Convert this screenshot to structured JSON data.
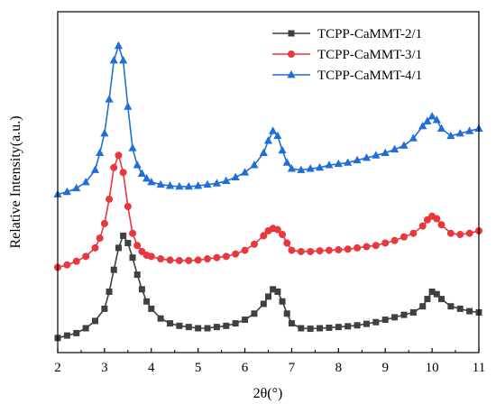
{
  "chart_data": {
    "type": "line",
    "xlabel": "2θ(°)",
    "ylabel": "Relative Intensity(a.u.)",
    "xlim": [
      2,
      11
    ],
    "ylim": [
      0,
      14
    ],
    "x_ticks": [
      "2",
      "3",
      "4",
      "5",
      "6",
      "7",
      "8",
      "9",
      "10",
      "11"
    ],
    "y_ticks_labeled": false,
    "grid": false,
    "legend_position": "top-right",
    "series": [
      {
        "name": "TCPP-CaMMT-2/1",
        "color": "#404040",
        "marker": "square",
        "x": [
          2.0,
          2.2,
          2.4,
          2.6,
          2.8,
          3.0,
          3.1,
          3.2,
          3.3,
          3.4,
          3.5,
          3.6,
          3.7,
          3.8,
          3.9,
          4.0,
          4.2,
          4.4,
          4.6,
          4.8,
          5.0,
          5.2,
          5.4,
          5.6,
          5.8,
          6.0,
          6.2,
          6.4,
          6.5,
          6.6,
          6.7,
          6.8,
          6.9,
          7.0,
          7.2,
          7.4,
          7.6,
          7.8,
          8.0,
          8.2,
          8.4,
          8.6,
          8.8,
          9.0,
          9.2,
          9.4,
          9.6,
          9.8,
          9.9,
          10.0,
          10.1,
          10.2,
          10.4,
          10.6,
          10.8,
          11.0
        ],
        "y": [
          0.6,
          0.7,
          0.8,
          1.0,
          1.3,
          1.8,
          2.5,
          3.4,
          4.3,
          4.8,
          4.5,
          3.9,
          3.2,
          2.6,
          2.1,
          1.8,
          1.4,
          1.2,
          1.1,
          1.05,
          1.0,
          1.0,
          1.05,
          1.1,
          1.2,
          1.35,
          1.6,
          2.0,
          2.3,
          2.6,
          2.5,
          2.1,
          1.6,
          1.2,
          1.0,
          0.98,
          1.0,
          1.02,
          1.05,
          1.08,
          1.12,
          1.18,
          1.25,
          1.35,
          1.45,
          1.55,
          1.65,
          1.9,
          2.2,
          2.5,
          2.4,
          2.2,
          1.9,
          1.8,
          1.7,
          1.65
        ]
      },
      {
        "name": "TCPP-CaMMT-3/1",
        "color": "#e8383d",
        "marker": "circle",
        "x": [
          2.0,
          2.2,
          2.4,
          2.6,
          2.8,
          2.9,
          3.0,
          3.1,
          3.2,
          3.3,
          3.4,
          3.5,
          3.6,
          3.7,
          3.8,
          3.9,
          4.0,
          4.2,
          4.4,
          4.6,
          4.8,
          5.0,
          5.2,
          5.4,
          5.6,
          5.8,
          6.0,
          6.2,
          6.4,
          6.5,
          6.6,
          6.7,
          6.8,
          6.9,
          7.0,
          7.2,
          7.4,
          7.6,
          7.8,
          8.0,
          8.2,
          8.4,
          8.6,
          8.8,
          9.0,
          9.2,
          9.4,
          9.6,
          9.8,
          9.9,
          10.0,
          10.1,
          10.2,
          10.4,
          10.6,
          10.8,
          11.0
        ],
        "y": [
          3.5,
          3.6,
          3.75,
          3.95,
          4.3,
          4.7,
          5.3,
          6.3,
          7.6,
          8.1,
          7.4,
          6.0,
          4.9,
          4.4,
          4.15,
          4.0,
          3.95,
          3.85,
          3.8,
          3.78,
          3.78,
          3.8,
          3.85,
          3.9,
          3.95,
          4.05,
          4.2,
          4.45,
          4.8,
          5.0,
          5.1,
          5.05,
          4.85,
          4.5,
          4.2,
          4.15,
          4.15,
          4.18,
          4.2,
          4.22,
          4.25,
          4.3,
          4.35,
          4.4,
          4.5,
          4.6,
          4.75,
          4.9,
          5.2,
          5.45,
          5.6,
          5.5,
          5.25,
          4.9,
          4.85,
          4.9,
          5.0
        ]
      },
      {
        "name": "TCPP-CaMMT-4/1",
        "color": "#1f6fd6",
        "marker": "triangle",
        "x": [
          2.0,
          2.2,
          2.4,
          2.6,
          2.8,
          2.9,
          3.0,
          3.1,
          3.2,
          3.3,
          3.4,
          3.5,
          3.6,
          3.7,
          3.8,
          3.9,
          4.0,
          4.2,
          4.4,
          4.6,
          4.8,
          5.0,
          5.2,
          5.4,
          5.6,
          5.8,
          6.0,
          6.2,
          6.4,
          6.5,
          6.6,
          6.7,
          6.8,
          6.9,
          7.0,
          7.2,
          7.4,
          7.6,
          7.8,
          8.0,
          8.2,
          8.4,
          8.6,
          8.8,
          9.0,
          9.2,
          9.4,
          9.6,
          9.8,
          9.9,
          10.0,
          10.1,
          10.2,
          10.4,
          10.6,
          10.8,
          11.0
        ],
        "y": [
          6.5,
          6.6,
          6.75,
          7.0,
          7.5,
          8.2,
          9.0,
          10.4,
          12.0,
          12.6,
          12.0,
          10.1,
          8.4,
          7.7,
          7.35,
          7.15,
          7.0,
          6.9,
          6.85,
          6.82,
          6.82,
          6.85,
          6.9,
          6.95,
          7.05,
          7.2,
          7.4,
          7.7,
          8.2,
          8.7,
          9.1,
          8.9,
          8.3,
          7.8,
          7.55,
          7.5,
          7.55,
          7.6,
          7.7,
          7.75,
          7.8,
          7.9,
          8.0,
          8.1,
          8.2,
          8.35,
          8.5,
          8.8,
          9.3,
          9.5,
          9.7,
          9.55,
          9.2,
          8.9,
          9.0,
          9.1,
          9.2
        ]
      }
    ]
  }
}
